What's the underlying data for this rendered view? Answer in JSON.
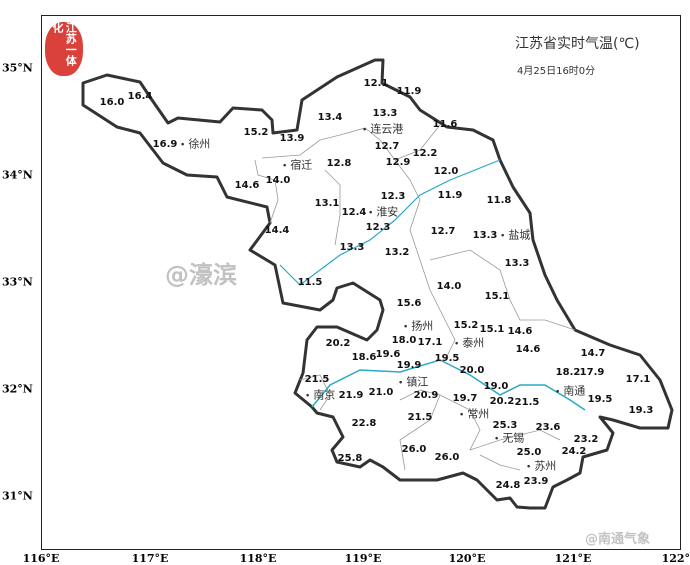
{
  "title": "江苏省实时气温(℃)",
  "subtitle": "4月25日16时0分",
  "logo_text": "江苏一体化",
  "watermarks": [
    "@濠滨",
    "@南通气象"
  ],
  "colors": {
    "border": "#333333",
    "river": "#29a9c6",
    "logo": "#d9413a"
  },
  "lat_labels": [
    "35°N",
    "34°N",
    "33°N",
    "32°N",
    "31°N"
  ],
  "lon_labels": [
    "116°E",
    "117°E",
    "118°E",
    "119°E",
    "120°E",
    "121°E",
    "122°E"
  ],
  "cities": [
    "徐州",
    "宿迁",
    "连云港",
    "淮安",
    "盐城",
    "扬州",
    "泰州",
    "镇江",
    "南京",
    "常州",
    "无锡",
    "苏州",
    "南通"
  ],
  "temperatures": [
    "16.0",
    "16.4",
    "15.2",
    "13.9",
    "13.4",
    "12.1",
    "11.9",
    "13.3",
    "11.6",
    "16.9",
    "12.8",
    "12.7",
    "12.9",
    "12.2",
    "14.0",
    "14.6",
    "12.0",
    "13.1",
    "12.3",
    "11.9",
    "11.8",
    "12.4",
    "12.3",
    "14.4",
    "12.7",
    "13.3",
    "13.3",
    "13.2",
    "13.3",
    "14.0",
    "11.5",
    "15.1",
    "15.6",
    "15.2",
    "15.1",
    "14.6",
    "17.1",
    "18.0",
    "19.6",
    "20.2",
    "14.6",
    "18.6",
    "14.7",
    "19.5",
    "19.9",
    "20.0",
    "18.2",
    "17.9",
    "17.1",
    "21.5",
    "21.9",
    "21.0",
    "20.9",
    "19.0",
    "20.2",
    "19.7",
    "21.5",
    "19.5",
    "19.3",
    "21.5",
    "22.8",
    "25.3",
    "23.6",
    "23.2",
    "26.0",
    "25.0",
    "24.2",
    "26.0",
    "25.8",
    "23.9",
    "24.8"
  ]
}
